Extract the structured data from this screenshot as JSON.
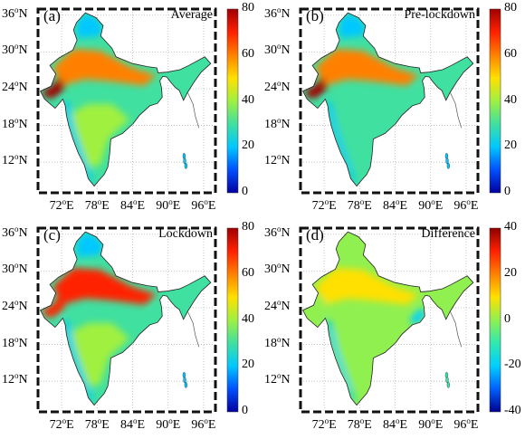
{
  "figure": {
    "lat_labels": [
      "36",
      "30",
      "24",
      "18",
      "12"
    ],
    "lat_suffix": "N",
    "lon_labels": [
      "72",
      "78",
      "84",
      "90",
      "96"
    ],
    "lon_suffix": "E",
    "degree_symbol": "o",
    "colorscales": {
      "absolute": [
        "#0000a0",
        "#0050ff",
        "#00c8ff",
        "#40e0a0",
        "#a0f040",
        "#ffe000",
        "#ff8000",
        "#ff2000",
        "#a00000"
      ],
      "difference": [
        "#00008f",
        "#0060ff",
        "#00d0ff",
        "#30e8b0",
        "#90f050",
        "#ffe000",
        "#ff8000",
        "#ff2000",
        "#8f0000"
      ]
    },
    "background_color": "#ffffff"
  },
  "panels": [
    {
      "tag": "(a)",
      "title": "Average",
      "cb_ticks": [
        "80",
        "60",
        "40",
        "20",
        "0"
      ],
      "cb_range": [
        0,
        80
      ],
      "cmap": "absolute"
    },
    {
      "tag": "(b)",
      "title": "Pre-lockdown",
      "cb_ticks": [
        "80",
        "60",
        "40",
        "20",
        "0"
      ],
      "cb_range": [
        0,
        80
      ],
      "cmap": "absolute"
    },
    {
      "tag": "(c)",
      "title": "Lockdown",
      "cb_ticks": [
        "80",
        "60",
        "40",
        "20",
        "0"
      ],
      "cb_range": [
        0,
        80
      ],
      "cmap": "absolute"
    },
    {
      "tag": "(d)",
      "title": "Difference",
      "cb_ticks": [
        "40",
        "20",
        "0",
        "-20",
        "-40"
      ],
      "cb_range": [
        -40,
        40
      ],
      "cmap": "difference"
    }
  ]
}
